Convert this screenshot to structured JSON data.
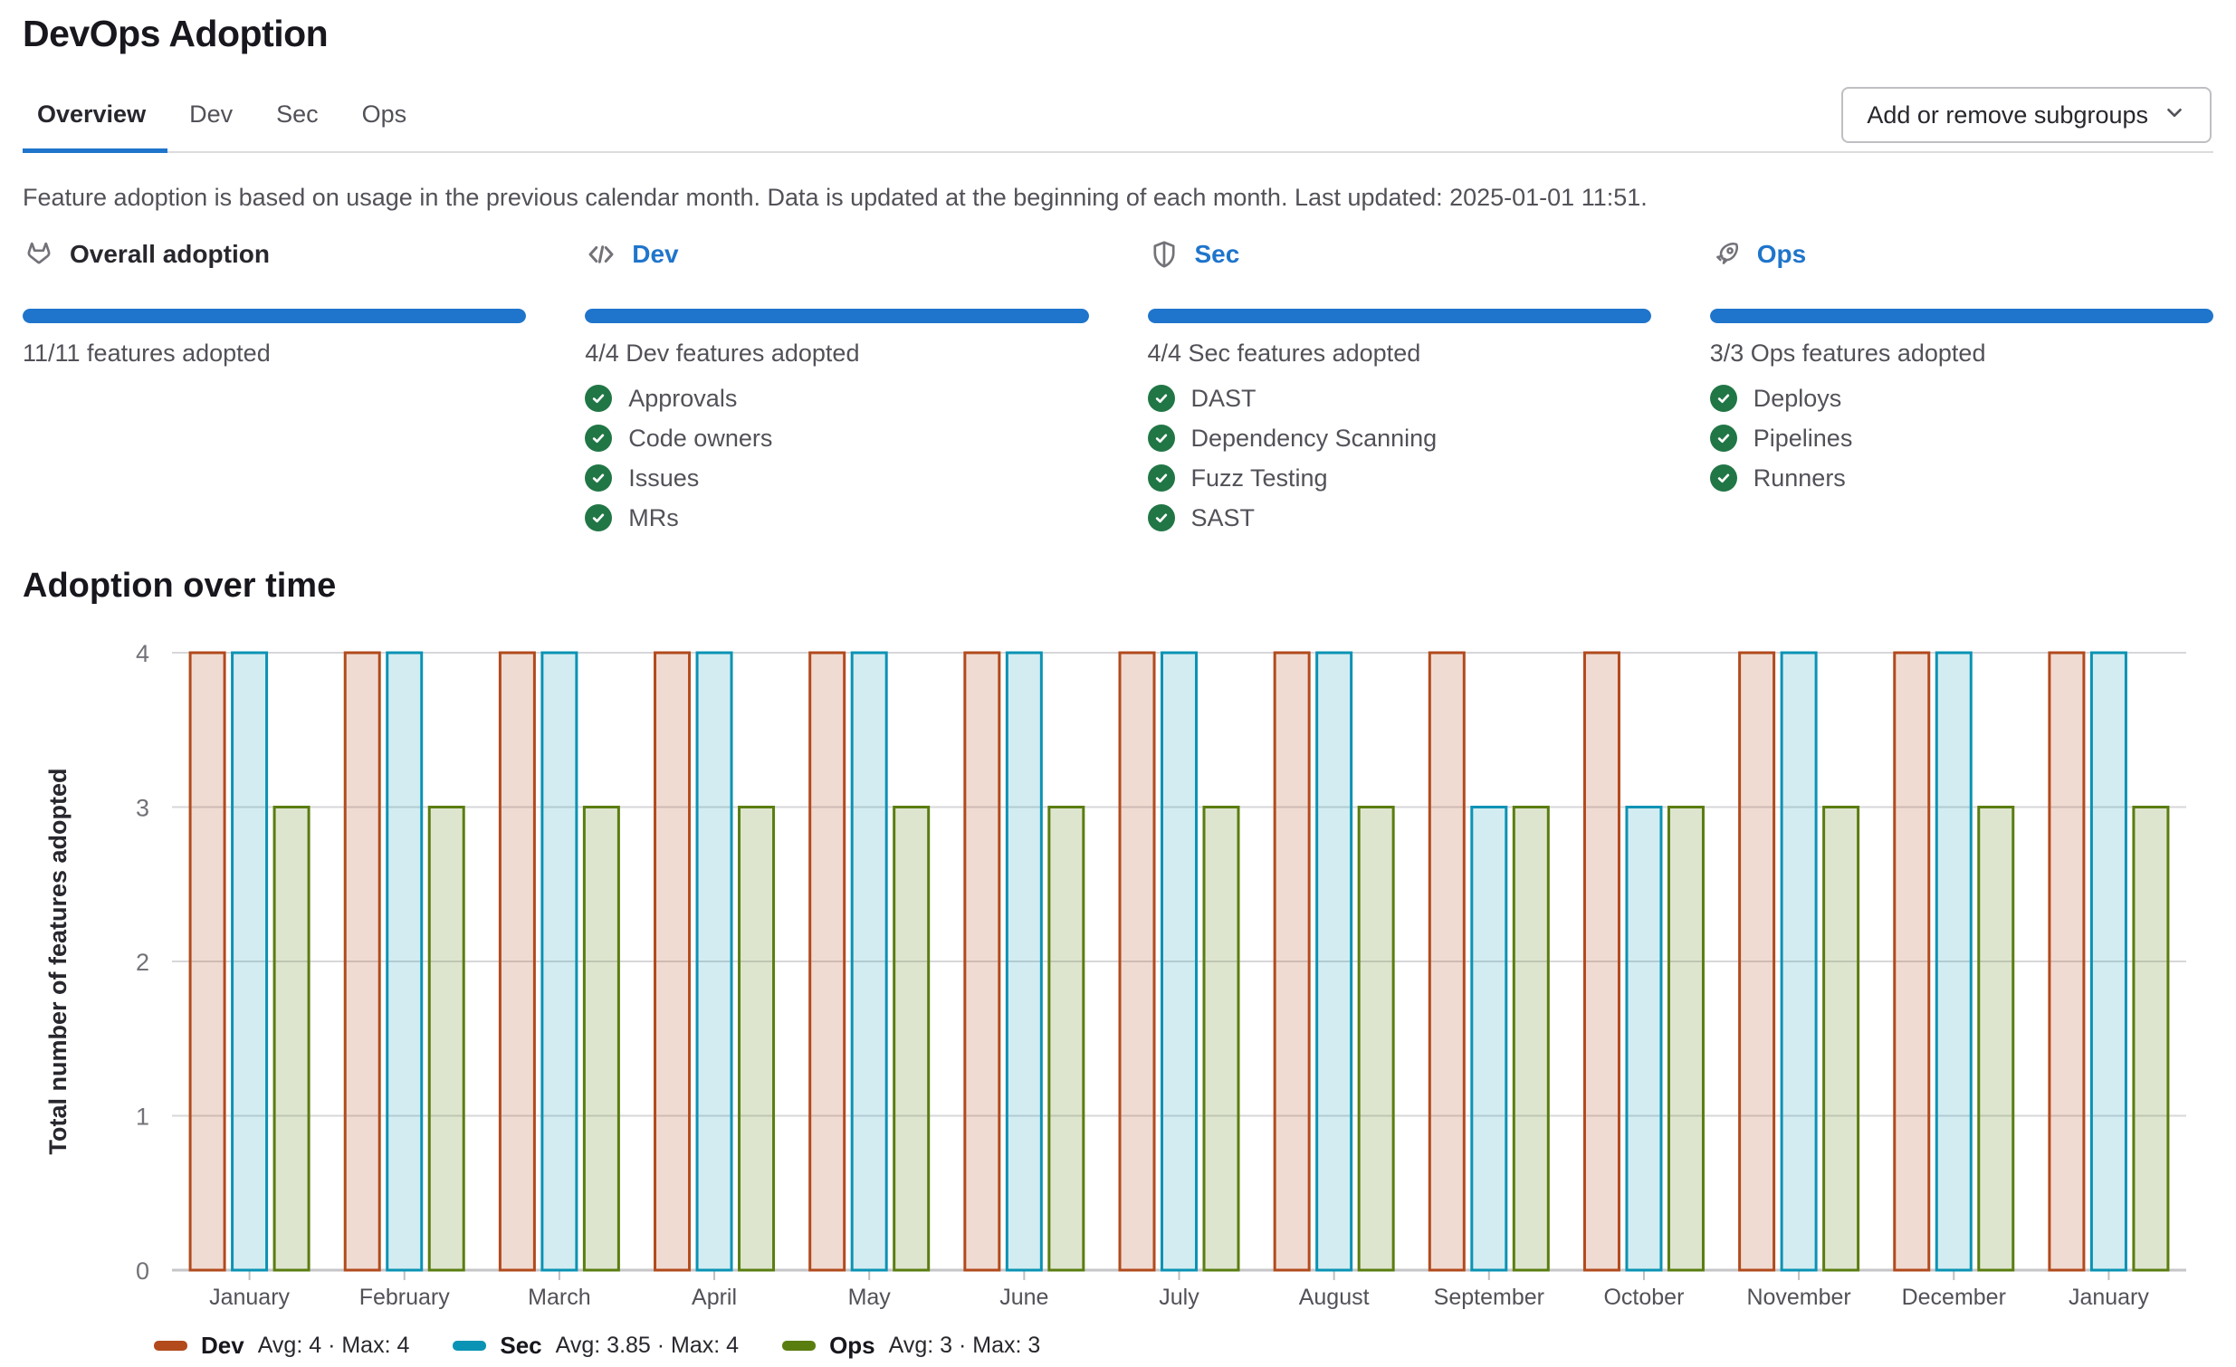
{
  "header": {
    "title": "DevOps Adoption"
  },
  "tabs": [
    {
      "label": "Overview",
      "active": true
    },
    {
      "label": "Dev",
      "active": false
    },
    {
      "label": "Sec",
      "active": false
    },
    {
      "label": "Ops",
      "active": false
    }
  ],
  "toolbar": {
    "add_remove_label": "Add or remove subgroups",
    "chevron_icon": "chevron-down-icon"
  },
  "description": "Feature adoption is based on usage in the previous calendar month. Data is updated at the beginning of each month. Last updated: 2025-01-01 11:51.",
  "summary_cards": [
    {
      "key": "overall",
      "icon": "tanuki-icon",
      "title": "Overall adoption",
      "is_link": false,
      "progress_percent": 100,
      "status": "11/11 features adopted",
      "features": []
    },
    {
      "key": "dev",
      "icon": "code-icon",
      "title": "Dev",
      "is_link": true,
      "progress_percent": 100,
      "status": "4/4 Dev features adopted",
      "features": [
        "Approvals",
        "Code owners",
        "Issues",
        "MRs"
      ]
    },
    {
      "key": "sec",
      "icon": "shield-icon",
      "title": "Sec",
      "is_link": true,
      "progress_percent": 100,
      "status": "4/4 Sec features adopted",
      "features": [
        "DAST",
        "Dependency Scanning",
        "Fuzz Testing",
        "SAST"
      ]
    },
    {
      "key": "ops",
      "icon": "rocket-icon",
      "title": "Ops",
      "is_link": true,
      "progress_percent": 100,
      "status": "3/3 Ops features adopted",
      "features": [
        "Deploys",
        "Pipelines",
        "Runners"
      ]
    }
  ],
  "chart_section_title": "Adoption over time",
  "chart_data": {
    "type": "bar",
    "title": "Adoption over time",
    "categories": [
      "January",
      "February",
      "March",
      "April",
      "May",
      "June",
      "July",
      "August",
      "September",
      "October",
      "November",
      "December",
      "January"
    ],
    "series": [
      {
        "name": "Dev",
        "values": [
          4,
          4,
          4,
          4,
          4,
          4,
          4,
          4,
          4,
          4,
          4,
          4,
          4
        ],
        "avg": 4,
        "max": 4,
        "legend_label": "Avg: 4 · Max: 4",
        "stroke": "#b24a1c",
        "fill": "rgba(178,74,28,0.2)"
      },
      {
        "name": "Sec",
        "values": [
          4,
          4,
          4,
          4,
          4,
          4,
          4,
          4,
          3,
          3,
          4,
          4,
          4
        ],
        "avg": 3.85,
        "max": 4,
        "legend_label": "Avg: 3.85 · Max: 4",
        "stroke": "#0a93b4",
        "fill": "rgba(10,147,180,0.18)"
      },
      {
        "name": "Ops",
        "values": [
          3,
          3,
          3,
          3,
          3,
          3,
          3,
          3,
          3,
          3,
          3,
          3,
          3
        ],
        "avg": 3,
        "max": 3,
        "legend_label": "Avg: 3 · Max: 3",
        "stroke": "#5a7d10",
        "fill": "rgba(90,125,16,0.2)"
      }
    ],
    "xlabel": "",
    "ylabel": "Total number of features adopted",
    "ylim": [
      0,
      4
    ],
    "yticks": [
      0,
      1,
      2,
      3,
      4
    ],
    "grid": true,
    "legend_position": "bottom"
  },
  "colors": {
    "accent_blue": "#1f75cb",
    "check_green": "#217645",
    "tab_border": "#dcdcde",
    "grid_line": "#d7d7da",
    "axis_line": "#c6c6c9",
    "tick_mark": "#bfbfc3",
    "heading": "#18171d",
    "text_primary": "#28272d",
    "text_secondary": "#535158",
    "tick_label": "#737278",
    "icon_gray": "#737278"
  }
}
